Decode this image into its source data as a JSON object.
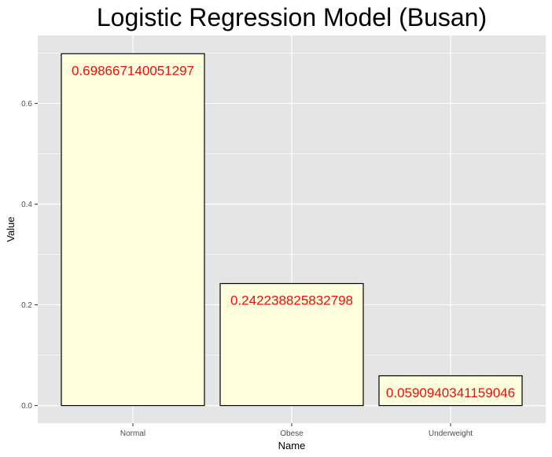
{
  "chart_data": {
    "type": "bar",
    "title": "Logistic Regression Model (Busan)",
    "xlabel": "Name",
    "ylabel": "Value",
    "categories": [
      "Normal",
      "Obese",
      "Underweight"
    ],
    "values": [
      0.698667140051297,
      0.242238825832798,
      0.0590940341159046
    ],
    "data_labels": [
      "0.698667140051297",
      "0.242238825832798",
      "0.0590940341159046"
    ],
    "yticks": [
      0.0,
      0.2,
      0.4,
      0.6
    ],
    "ytick_labels": [
      "0.0",
      "0.2",
      "0.4",
      "0.6"
    ],
    "ylim": [
      -0.035,
      0.735
    ],
    "grid": true,
    "legend": "none"
  },
  "colors": {
    "panel_background": "#e5e5e5",
    "grid": "#ffffff",
    "bar_fill": "#ffffdd",
    "bar_outline": "#000000",
    "data_label": "#e8100c"
  }
}
